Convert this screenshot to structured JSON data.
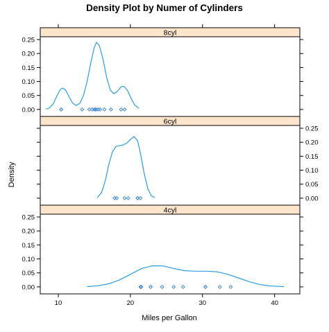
{
  "chart_data": {
    "type": "line",
    "title": "Density Plot by Numer of Cylinders",
    "xlabel": "Miles per Gallon",
    "ylabel": "Density",
    "xlim": [
      7.5,
      43.5
    ],
    "ylim": [
      -0.025,
      0.26
    ],
    "x_ticks": [
      10,
      20,
      30,
      40
    ],
    "y_ticks": [
      0.0,
      0.05,
      0.1,
      0.15,
      0.2,
      0.25
    ],
    "y_tick_labels": [
      "0.00",
      "0.05",
      "0.10",
      "0.15",
      "0.20",
      "0.25"
    ],
    "grid": false,
    "curve_color": "#2b9be8",
    "rug_color": "#2f7fd6",
    "strip_color": "#ffe5cc",
    "panels": [
      {
        "strip_label": "8cyl",
        "density": [
          [
            10.6,
            0.0
          ],
          [
            10.6,
            0.005
          ],
          [
            10.6,
            0.01
          ],
          [
            10.6,
            0.02
          ],
          [
            10.6,
            0.035
          ],
          [
            10.6,
            0.05
          ],
          [
            10.6,
            0.065
          ],
          [
            10.6,
            0.074
          ]
        ],
        "curve": [
          [
            8.3,
            0.001
          ],
          [
            8.8,
            0.006
          ],
          [
            9.3,
            0.02
          ],
          [
            9.8,
            0.048
          ],
          [
            10.3,
            0.072
          ],
          [
            10.6,
            0.076
          ],
          [
            11.0,
            0.07
          ],
          [
            11.5,
            0.045
          ],
          [
            12.0,
            0.022
          ],
          [
            12.5,
            0.014
          ],
          [
            13.0,
            0.022
          ],
          [
            13.5,
            0.05
          ],
          [
            14.0,
            0.1
          ],
          [
            14.5,
            0.165
          ],
          [
            15.0,
            0.222
          ],
          [
            15.3,
            0.24
          ],
          [
            15.7,
            0.228
          ],
          [
            16.2,
            0.18
          ],
          [
            16.7,
            0.115
          ],
          [
            17.2,
            0.07
          ],
          [
            17.7,
            0.056
          ],
          [
            18.2,
            0.065
          ],
          [
            18.7,
            0.081
          ],
          [
            19.1,
            0.083
          ],
          [
            19.6,
            0.068
          ],
          [
            20.1,
            0.04
          ],
          [
            20.6,
            0.016
          ],
          [
            21.2,
            0.004
          ]
        ],
        "rug": [
          10.4,
          10.4,
          13.3,
          14.3,
          14.7,
          15.0,
          15.2,
          15.2,
          15.5,
          15.8,
          16.4,
          17.3,
          18.7,
          19.2
        ],
        "y_axis_side": "left"
      },
      {
        "strip_label": "6cyl",
        "curve": [
          [
            15.4,
            0.002
          ],
          [
            16.0,
            0.02
          ],
          [
            16.5,
            0.06
          ],
          [
            17.0,
            0.12
          ],
          [
            17.5,
            0.165
          ],
          [
            18.0,
            0.185
          ],
          [
            18.5,
            0.188
          ],
          [
            19.0,
            0.19
          ],
          [
            19.5,
            0.197
          ],
          [
            20.0,
            0.21
          ],
          [
            20.5,
            0.22
          ],
          [
            21.0,
            0.205
          ],
          [
            21.4,
            0.16
          ],
          [
            21.9,
            0.09
          ],
          [
            22.4,
            0.035
          ],
          [
            22.9,
            0.008
          ],
          [
            23.4,
            0.002
          ]
        ],
        "rug": [
          17.8,
          18.1,
          19.2,
          19.7,
          21.0,
          21.0,
          21.4
        ],
        "y_axis_side": "right"
      },
      {
        "strip_label": "4cyl",
        "curve": [
          [
            14.0,
            0.001
          ],
          [
            15.5,
            0.004
          ],
          [
            17.0,
            0.011
          ],
          [
            18.5,
            0.025
          ],
          [
            20.0,
            0.045
          ],
          [
            21.5,
            0.065
          ],
          [
            23.0,
            0.075
          ],
          [
            24.5,
            0.075
          ],
          [
            26.0,
            0.066
          ],
          [
            27.5,
            0.058
          ],
          [
            29.0,
            0.056
          ],
          [
            30.5,
            0.056
          ],
          [
            32.0,
            0.054
          ],
          [
            33.5,
            0.045
          ],
          [
            35.0,
            0.032
          ],
          [
            36.5,
            0.018
          ],
          [
            38.0,
            0.008
          ],
          [
            39.5,
            0.003
          ],
          [
            41.3,
            0.001
          ]
        ],
        "rug": [
          21.4,
          21.5,
          22.8,
          22.8,
          24.4,
          26.0,
          27.3,
          30.4,
          30.4,
          32.4,
          33.9
        ],
        "y_axis_side": "left"
      }
    ]
  }
}
